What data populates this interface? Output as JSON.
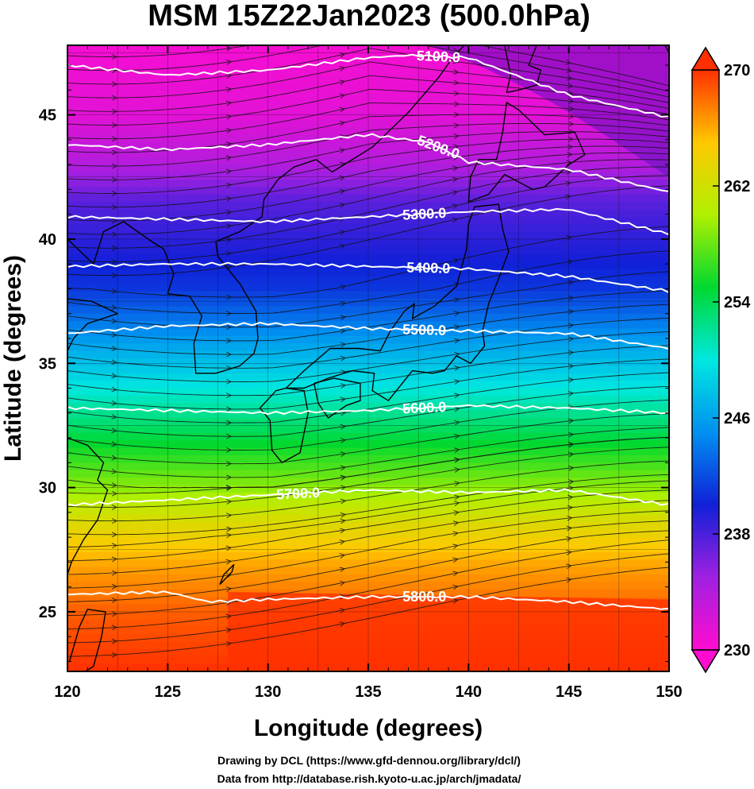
{
  "chart_data": {
    "type": "heatmap",
    "title": "MSM 15Z22Jan2023 (500.0hPa)",
    "xlabel": "Longitude (degrees)",
    "ylabel": "Latitude  (degrees)",
    "xlim": [
      120,
      150
    ],
    "ylim": [
      22.6,
      47.8
    ],
    "x_ticks": [
      "120",
      "125",
      "130",
      "135",
      "140",
      "145",
      "150"
    ],
    "y_ticks": [
      "25",
      "30",
      "35",
      "40",
      "45"
    ],
    "colorbar": {
      "range": [
        230,
        270
      ],
      "ticks": [
        "230",
        "238",
        "246",
        "254",
        "262",
        "270"
      ],
      "extend": "both",
      "colormap": [
        "#ff0cd0",
        "#a020e0",
        "#1020d8",
        "#0090f0",
        "#00e8e0",
        "#00d830",
        "#b0f000",
        "#ffc800",
        "#ff3000"
      ]
    },
    "temperature_profile_by_latitude": [
      {
        "lat": 47.8,
        "t": 230.5
      },
      {
        "lat": 45,
        "t": 231.5
      },
      {
        "lat": 43,
        "t": 234
      },
      {
        "lat": 41.5,
        "t": 237.5
      },
      {
        "lat": 40,
        "t": 239
      },
      {
        "lat": 38,
        "t": 241
      },
      {
        "lat": 36,
        "t": 245.5
      },
      {
        "lat": 34,
        "t": 250
      },
      {
        "lat": 32,
        "t": 254.5
      },
      {
        "lat": 30,
        "t": 259
      },
      {
        "lat": 28.5,
        "t": 263
      },
      {
        "lat": 27,
        "t": 266
      },
      {
        "lat": 25,
        "t": 268.5
      },
      {
        "lat": 22.6,
        "t": 270
      }
    ],
    "height_contours": [
      {
        "label": "5100.0",
        "points": [
          [
            120,
            47.0
          ],
          [
            125,
            46.6
          ],
          [
            130,
            46.8
          ],
          [
            135,
            47.3
          ],
          [
            137,
            47.4
          ],
          [
            140,
            47.3
          ],
          [
            145,
            45.8
          ],
          [
            150,
            44.9
          ]
        ]
      },
      {
        "label": "5200.0",
        "points": [
          [
            120,
            43.8
          ],
          [
            125,
            43.6
          ],
          [
            130,
            43.8
          ],
          [
            135,
            44.2
          ],
          [
            138,
            43.9
          ],
          [
            140,
            43.1
          ],
          [
            145,
            42.8
          ],
          [
            150,
            41.9
          ]
        ]
      },
      {
        "label": "5300.0",
        "points": [
          [
            120,
            40.9
          ],
          [
            125,
            40.8
          ],
          [
            130,
            40.7
          ],
          [
            135,
            40.9
          ],
          [
            140,
            41.1
          ],
          [
            145,
            41.2
          ],
          [
            150,
            40.2
          ]
        ]
      },
      {
        "label": "5400.0",
        "points": [
          [
            120,
            38.9
          ],
          [
            125,
            39.0
          ],
          [
            130,
            39.0
          ],
          [
            135,
            38.9
          ],
          [
            140,
            38.8
          ],
          [
            145,
            38.5
          ],
          [
            150,
            37.9
          ]
        ]
      },
      {
        "label": "5500.0",
        "points": [
          [
            120,
            36.2
          ],
          [
            125,
            36.5
          ],
          [
            130,
            36.6
          ],
          [
            135,
            36.4
          ],
          [
            140,
            36.3
          ],
          [
            145,
            36.2
          ],
          [
            150,
            35.6
          ]
        ]
      },
      {
        "label": "5600.0",
        "points": [
          [
            120,
            33.2
          ],
          [
            125,
            33.1
          ],
          [
            130,
            33.0
          ],
          [
            135,
            33.1
          ],
          [
            140,
            33.3
          ],
          [
            145,
            33.2
          ],
          [
            150,
            33.0
          ]
        ]
      },
      {
        "label": "5700.0",
        "points": [
          [
            120,
            29.3
          ],
          [
            125,
            29.5
          ],
          [
            130,
            29.7
          ],
          [
            135,
            29.9
          ],
          [
            140,
            29.8
          ],
          [
            145,
            29.9
          ],
          [
            150,
            29.3
          ]
        ]
      },
      {
        "label": "5800.0",
        "points": [
          [
            120,
            25.7
          ],
          [
            125,
            25.8
          ],
          [
            127,
            25.4
          ],
          [
            130,
            25.5
          ],
          [
            135,
            25.6
          ],
          [
            138,
            25.6
          ],
          [
            140,
            25.6
          ],
          [
            145,
            25.4
          ],
          [
            150,
            25.1
          ]
        ]
      }
    ],
    "contour_label_longitudes": [
      138.5,
      138.5,
      137.8,
      138.0,
      137.8,
      137.8,
      131.5,
      137.8
    ],
    "wind_direction": "mostly west to east, curving north-east over the Sea of Japan",
    "grid": true,
    "coastlines": true,
    "credits": [
      "Drawing by DCL (https://www.gfd-dennou.org/library/dcl/)",
      "Data from http://database.rish.kyoto-u.ac.jp/arch/jmadata/"
    ]
  }
}
